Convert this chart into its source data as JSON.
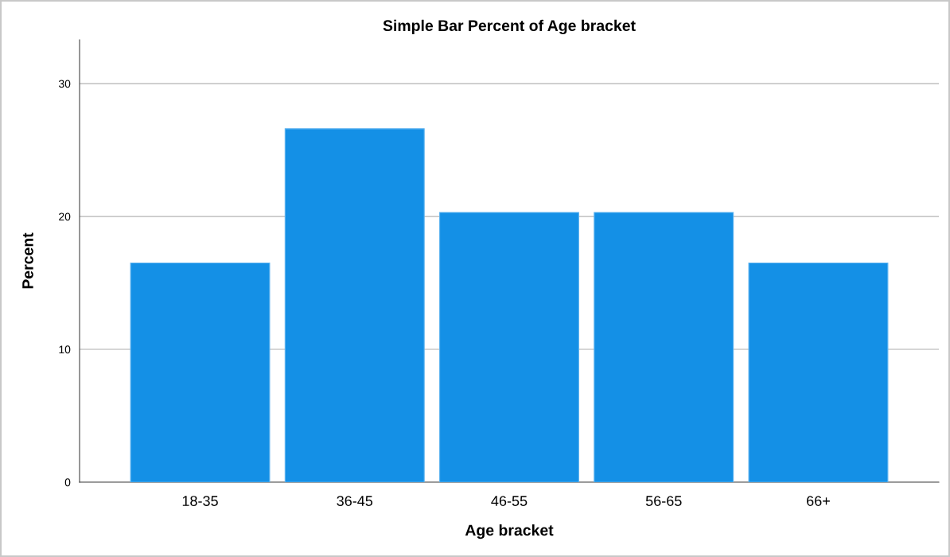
{
  "chart_data": {
    "type": "bar",
    "title": "Simple Bar Percent of Age bracket",
    "xlabel": "Age bracket",
    "ylabel": "Percent",
    "categories": [
      "18-35",
      "36-45",
      "46-55",
      "56-65",
      "66+"
    ],
    "values": [
      16.5,
      26.6,
      20.3,
      20.3,
      16.5
    ],
    "color": "#1490e6",
    "ylim": [
      0,
      33.3
    ],
    "yticks": [
      0,
      10,
      20,
      30
    ],
    "grid": "y"
  }
}
